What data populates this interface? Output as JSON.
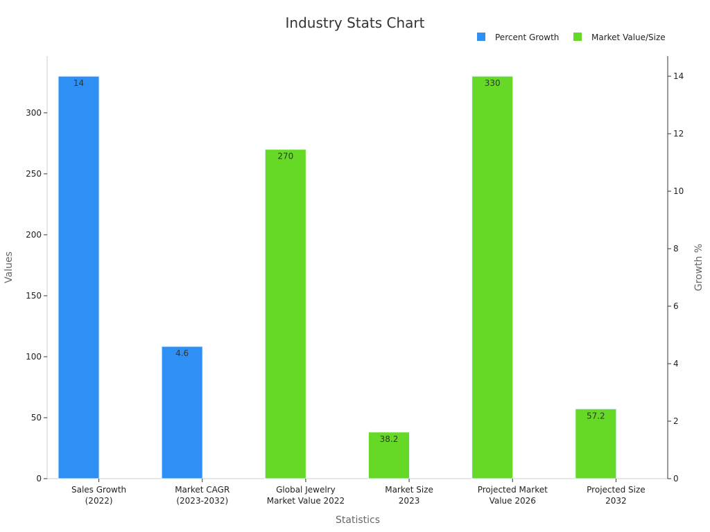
{
  "colors": {
    "percent": "#2e90f5",
    "market": "#66d926",
    "axis": "#cccccc",
    "spine": "#333333"
  },
  "chart_data": {
    "type": "bar",
    "title": "Industry Stats Chart",
    "xlabel": "Statistics",
    "ylabel": "Values",
    "y2label": "Growth %",
    "ylim": [
      0,
      346.5
    ],
    "y2lim": [
      0,
      14.7
    ],
    "yticks": [
      0,
      50,
      100,
      150,
      200,
      250,
      300
    ],
    "y2ticks": [
      0,
      2,
      4,
      6,
      8,
      10,
      12,
      14
    ],
    "legend": {
      "position": "top-right",
      "entries": [
        "Percent Growth",
        "Market Value/Size"
      ]
    },
    "categories": [
      [
        "Sales Growth",
        "(2022)"
      ],
      [
        "Market CAGR",
        "(2023-2032)"
      ],
      [
        "Global Jewelry",
        "Market Value 2022"
      ],
      [
        "Market Size",
        "2023"
      ],
      [
        "Projected Market",
        "Value 2026"
      ],
      [
        "Projected Size",
        "2032"
      ]
    ],
    "series": [
      {
        "name": "Percent Growth",
        "axis": "right",
        "values": [
          14,
          4.6,
          null,
          null,
          null,
          null
        ],
        "labels": [
          "14",
          "4.6",
          "",
          "",
          "",
          ""
        ]
      },
      {
        "name": "Market Value/Size",
        "axis": "left",
        "values": [
          null,
          null,
          270,
          38.2,
          330,
          57.2
        ],
        "labels": [
          "",
          "",
          "270",
          "38.2",
          "330",
          "57.2"
        ]
      }
    ]
  }
}
